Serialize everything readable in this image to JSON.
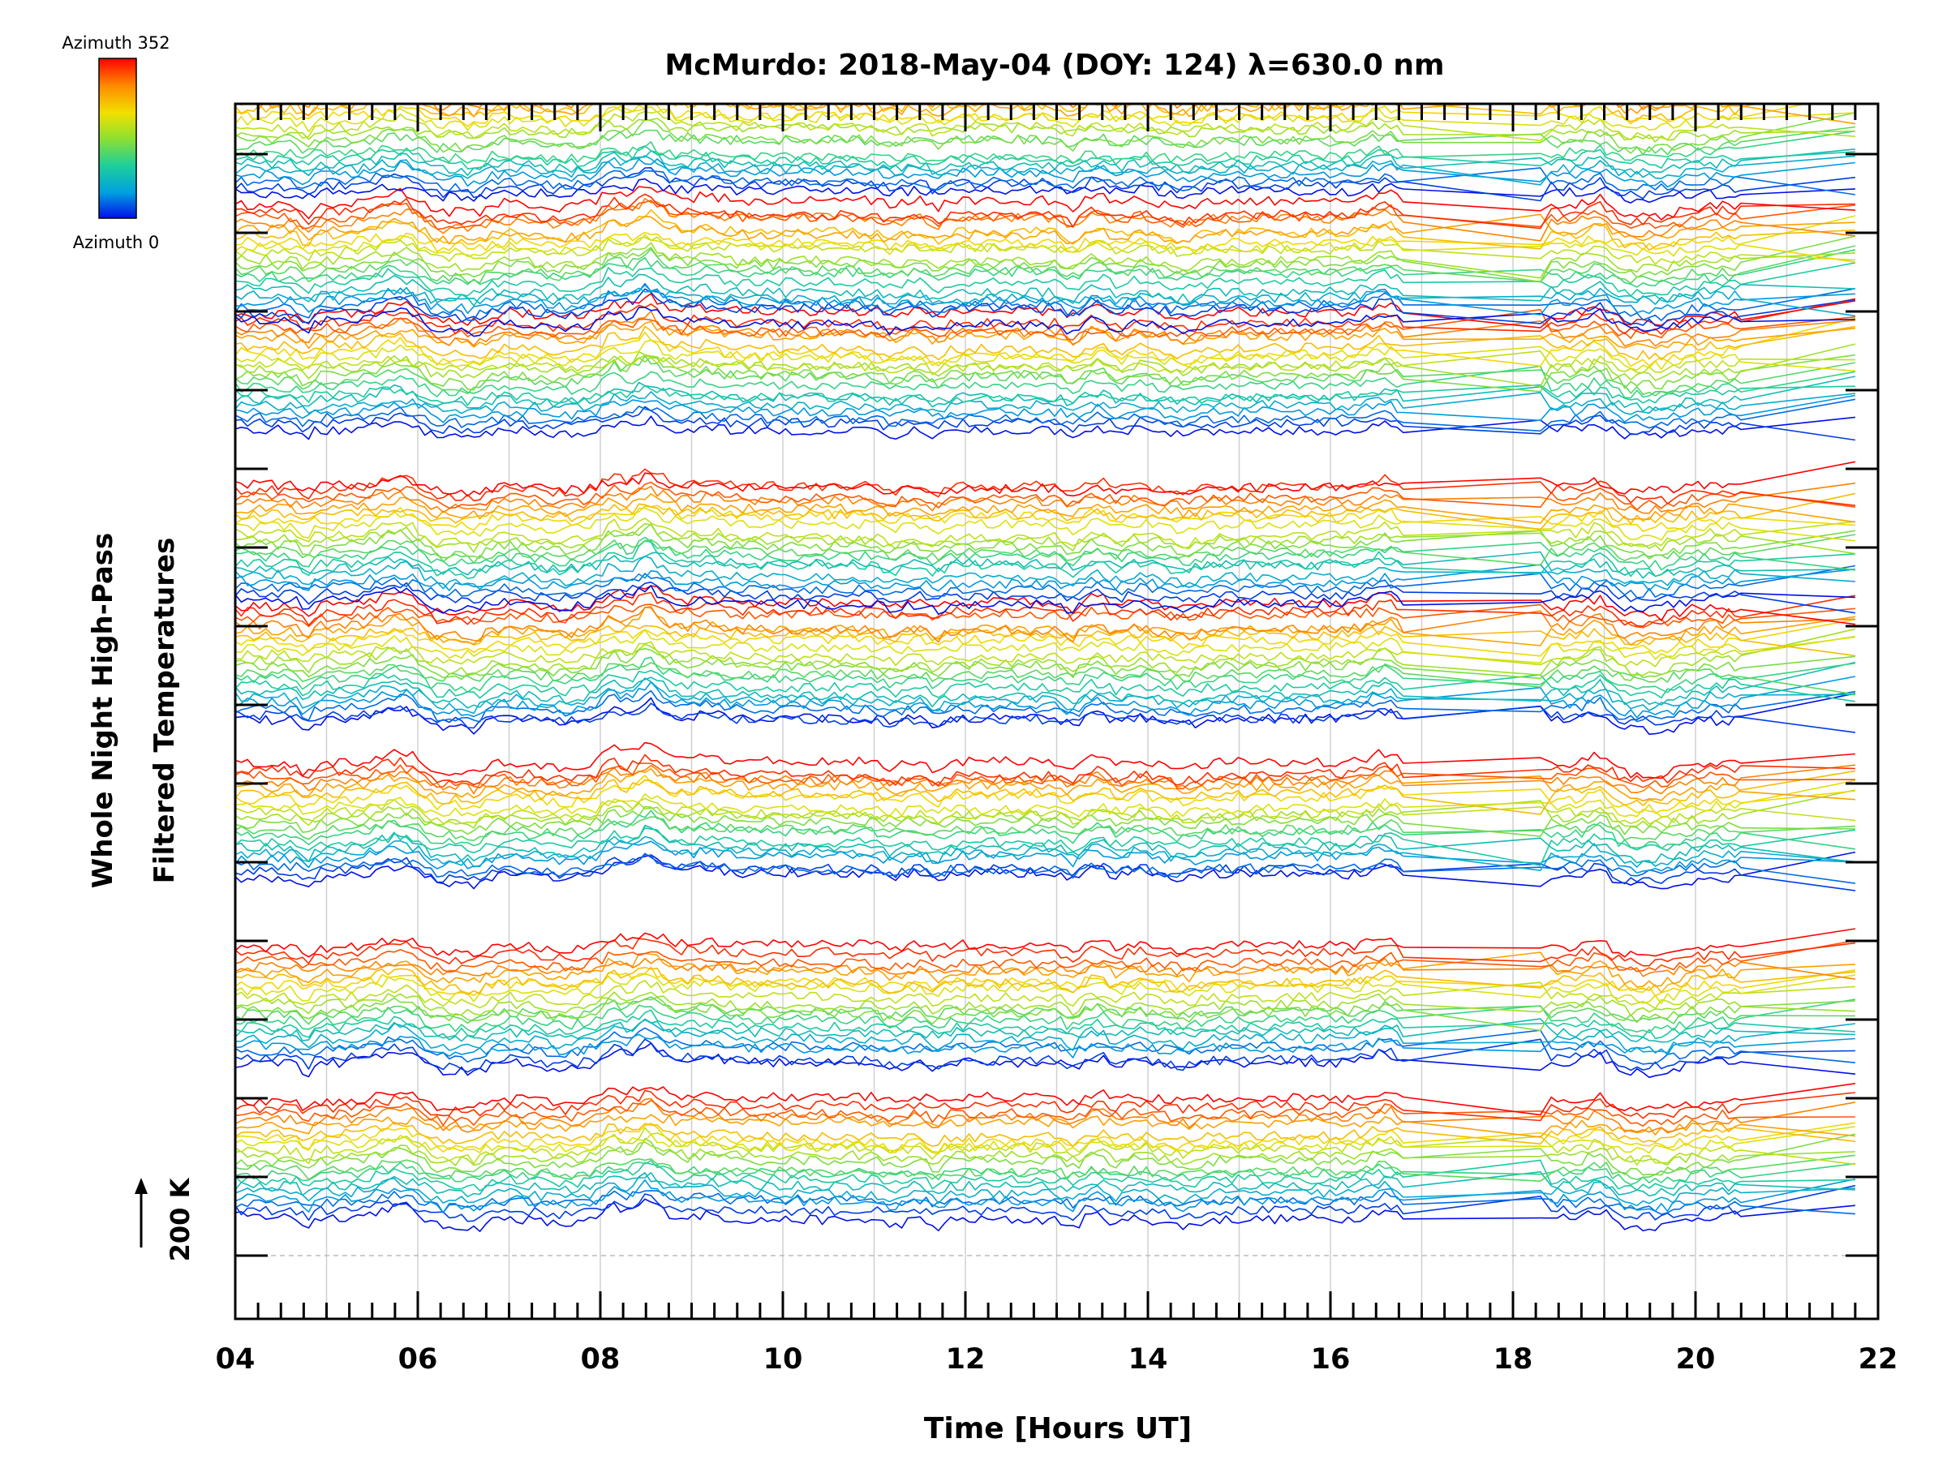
{
  "chart_data": {
    "type": "line",
    "title": "McMurdo: 2018-May-04 (DOY: 124) λ=630.0 nm",
    "xlabel": "Time [Hours UT]",
    "ylabel_line1": "Whole Night High-Pass",
    "ylabel_line2": "Filtered Temperatures",
    "xlim": [
      4,
      22
    ],
    "x_tick_labels": [
      "04",
      "06",
      "08",
      "10",
      "12",
      "14",
      "16",
      "18",
      "20",
      "22"
    ],
    "x_tick_values": [
      4,
      6,
      8,
      10,
      12,
      14,
      16,
      18,
      20,
      22
    ],
    "y_tick_count": 15,
    "scale_bar_label": "200 K",
    "colorbar": {
      "top_label": "Azimuth 352",
      "bottom_label": "Azimuth 0",
      "colors": [
        "#ff0000",
        "#ff8a00",
        "#f2e000",
        "#8ee030",
        "#1ecf9a",
        "#00a0e0",
        "#0010e8"
      ]
    },
    "series_description": "Stacked high-pass filtered temperature traces, one per azimuth (0-352 deg), offset vertically; data 04-20.5 UT then linear extrapolation to 21.75 UT; data gap 16.8-18.3 UT",
    "series_count": 160,
    "stack_group_baselines": [
      0.5,
      2.45,
      4.8,
      6.8,
      8.35,
      10.5,
      11.9,
      13.5
    ],
    "data_end_hour": 20.5,
    "extrapolation_end_hour": 21.75,
    "gap_hours": [
      16.8,
      18.3
    ]
  }
}
